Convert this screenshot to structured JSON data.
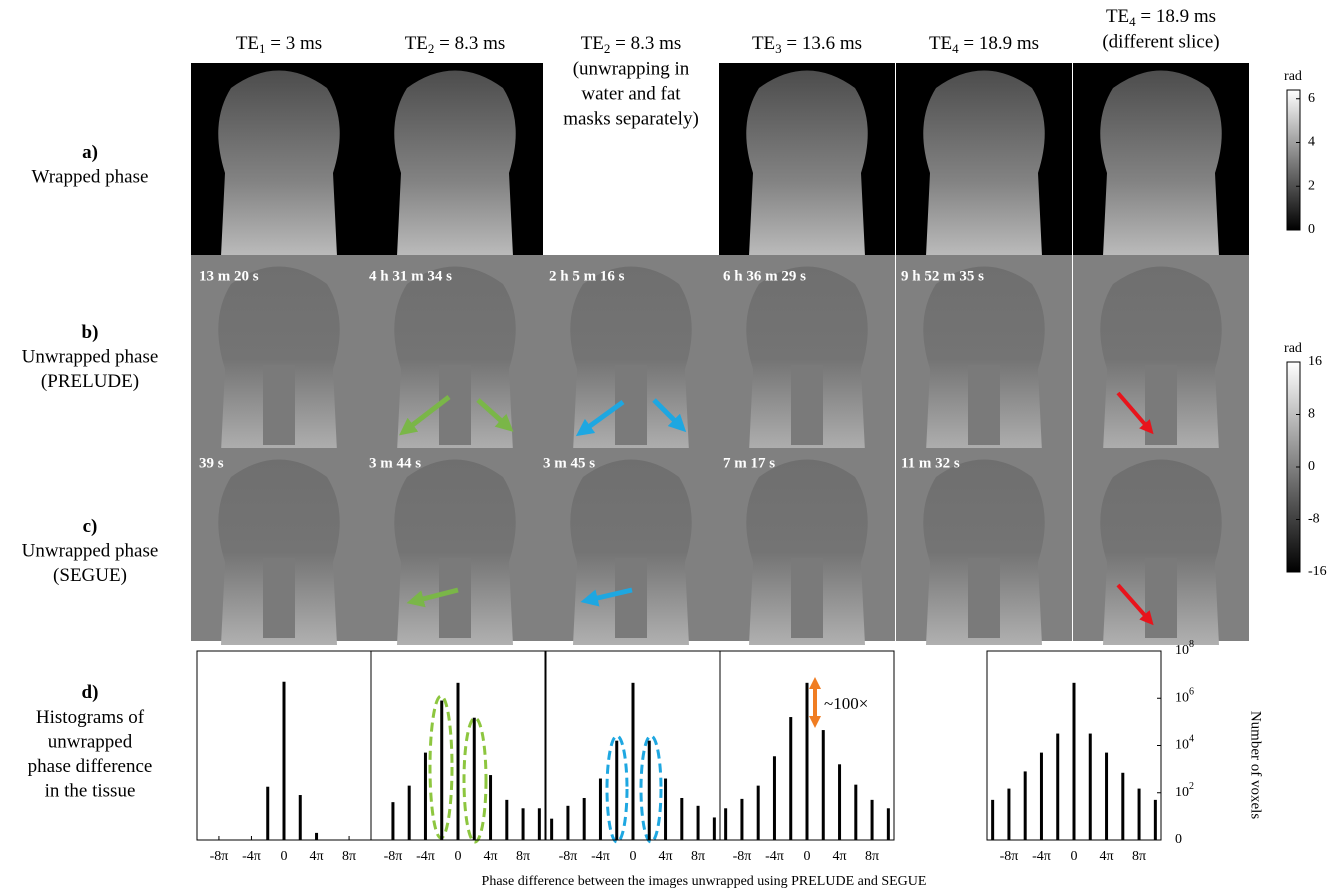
{
  "columns": [
    {
      "title": {
        "prefix": "TE",
        "subscript": "1",
        "suffix": " = 3 ms"
      }
    },
    {
      "title": {
        "prefix": "TE",
        "subscript": "2",
        "suffix": " = 8.3 ms"
      }
    },
    {
      "title": {
        "prefix": "TE",
        "subscript": "2",
        "suffix": " = 8.3 ms"
      },
      "notes": [
        "(unwrapping in",
        "water and fat",
        "masks separately)"
      ]
    },
    {
      "title": {
        "prefix": "TE",
        "subscript": "3",
        "suffix": " = 13.6 ms"
      }
    },
    {
      "title": {
        "prefix": "TE",
        "subscript": "4",
        "suffix": " = 18.9 ms"
      }
    },
    {
      "title": {
        "prefix": "TE",
        "subscript": "4",
        "suffix": " = 18.9 ms"
      },
      "notes": [
        "(different slice)"
      ]
    }
  ],
  "rows": [
    {
      "letter": "a)",
      "lines": [
        "Wrapped phase"
      ]
    },
    {
      "letter": "b)",
      "lines": [
        "Unwrapped phase",
        "(PRELUDE)"
      ]
    },
    {
      "letter": "c)",
      "lines": [
        "Unwrapped phase",
        "(SEGUE)"
      ]
    },
    {
      "letter": "d)",
      "lines": [
        "Histograms of",
        "unwrapped",
        "phase difference",
        "in the tissue"
      ]
    }
  ],
  "times": {
    "prelude": [
      "13 m 20 s",
      "4 h 31 m 34 s",
      "2 h 5 m 16 s",
      "6 h 36 m 29 s",
      "9 h 52 m 35 s"
    ],
    "segue": [
      "39 s",
      "3 m 44 s",
      "3 m 45 s",
      "7 m 17 s",
      "11 m 32 s"
    ]
  },
  "colorbars": [
    {
      "unit": "rad",
      "lim": [
        0,
        6.4
      ],
      "ticks": [
        0,
        2,
        4,
        6
      ]
    },
    {
      "unit": "rad",
      "lim": [
        -16,
        16
      ],
      "ticks": [
        -16,
        -8,
        0,
        8,
        16
      ]
    }
  ],
  "histograms": {
    "x_label": "Phase difference between the images unwrapped using PRELUDE and SEGUE",
    "y_label": "Number of voxels",
    "annotation": "~100×",
    "log_y": true,
    "ylim": [
      1,
      100000000
    ],
    "yticks": [
      {
        "value": 1,
        "label": "0"
      },
      {
        "value": 100,
        "label": "10^2"
      },
      {
        "value": 10000,
        "label": "10^4"
      },
      {
        "value": 1000000,
        "label": "10^6"
      },
      {
        "value": 100000000,
        "label": "10^8"
      }
    ],
    "xlim": [
      -33.6,
      33.6
    ],
    "xticks": [
      {
        "value": -25.13,
        "label": "-8π"
      },
      {
        "value": -12.57,
        "label": "-4π"
      },
      0,
      {
        "value": 12.57,
        "label": "4π"
      },
      {
        "value": 25.13,
        "label": "8π"
      }
    ],
    "panels": [
      {
        "x": [
          -6.28,
          0,
          6.28,
          12.57
        ],
        "values": [
          180,
          5000000,
          80,
          2
        ]
      },
      {
        "x": [
          -25.13,
          -18.85,
          -12.57,
          -6.28,
          0,
          6.28,
          12.57,
          18.85,
          25.13,
          31.42
        ],
        "values": [
          40,
          200,
          5000,
          800000,
          4500000,
          150000,
          560,
          50,
          22,
          22
        ]
      },
      {
        "x": [
          -31.42,
          -25.13,
          -18.85,
          -12.57,
          -6.28,
          0,
          6.28,
          12.57,
          18.85,
          25.13,
          31.42
        ],
        "values": [
          8,
          28,
          60,
          400,
          16000,
          4500000,
          16000,
          400,
          60,
          28,
          9
        ]
      },
      {
        "x": [
          -31.42,
          -25.13,
          -18.85,
          -12.57,
          -6.28,
          0,
          6.28,
          12.57,
          18.85,
          25.13,
          31.42
        ],
        "values": [
          22,
          55,
          200,
          3500,
          160000,
          4500000,
          45000,
          1600,
          220,
          50,
          22
        ]
      },
      {
        "x": [
          -31.42,
          -25.13,
          -18.85,
          -12.57,
          -6.28,
          0,
          6.28,
          12.57,
          18.85,
          25.13,
          31.42
        ],
        "values": [
          50,
          150,
          800,
          5000,
          32000,
          4500000,
          32000,
          5000,
          700,
          150,
          50
        ]
      }
    ]
  }
}
